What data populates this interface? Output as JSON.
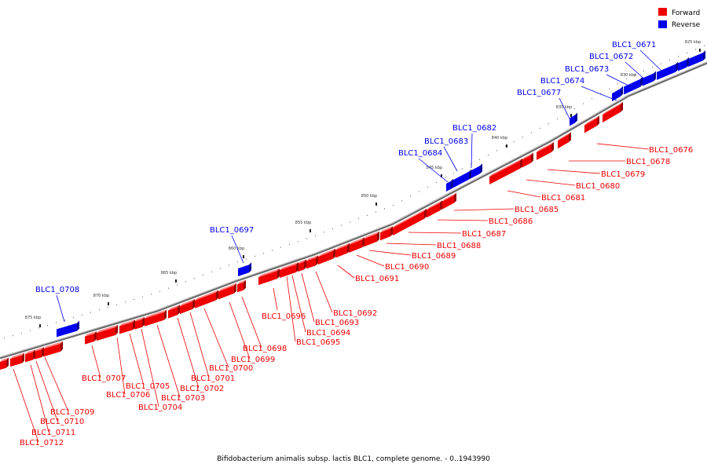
{
  "caption": "Bifidobacterium animalis subsp. lactis BLC1, complete genome. - 0..1943990",
  "legend": [
    {
      "label": "Forward",
      "color": "#ee0000"
    },
    {
      "label": "Reverse",
      "color": "#0000ee"
    }
  ],
  "colors": {
    "forward": "#ee0000",
    "reverse": "#0000ee",
    "backbone": "#888888"
  },
  "ticks": [
    "825 kbp",
    "830 kbp",
    "835 kbp",
    "840 kbp",
    "845 kbp",
    "850 kbp",
    "855 kbp",
    "860 kbp",
    "865 kbp",
    "870 kbp",
    "875 kbp"
  ],
  "forward_genes": [
    "BLC1_0676",
    "BLC1_0678",
    "BLC1_0679",
    "BLC1_0680",
    "BLC1_0681",
    "BLC1_0685",
    "BLC1_0686",
    "BLC1_0687",
    "BLC1_0688",
    "BLC1_0689",
    "BLC1_0690",
    "BLC1_0691",
    "BLC1_0692",
    "BLC1_0693",
    "BLC1_0694",
    "BLC1_0695",
    "BLC1_0696",
    "BLC1_0698",
    "BLC1_0699",
    "BLC1_0700",
    "BLC1_0701",
    "BLC1_0702",
    "BLC1_0703",
    "BLC1_0704",
    "BLC1_0705",
    "BLC1_0706",
    "BLC1_0707",
    "BLC1_0709",
    "BLC1_0710",
    "BLC1_0711",
    "BLC1_0712"
  ],
  "reverse_genes": [
    "BLC1_0671",
    "BLC1_0672",
    "BLC1_0673",
    "BLC1_0674",
    "BLC1_0677",
    "BLC1_0682",
    "BLC1_0683",
    "BLC1_0684",
    "BLC1_0697",
    "BLC1_0708"
  ]
}
